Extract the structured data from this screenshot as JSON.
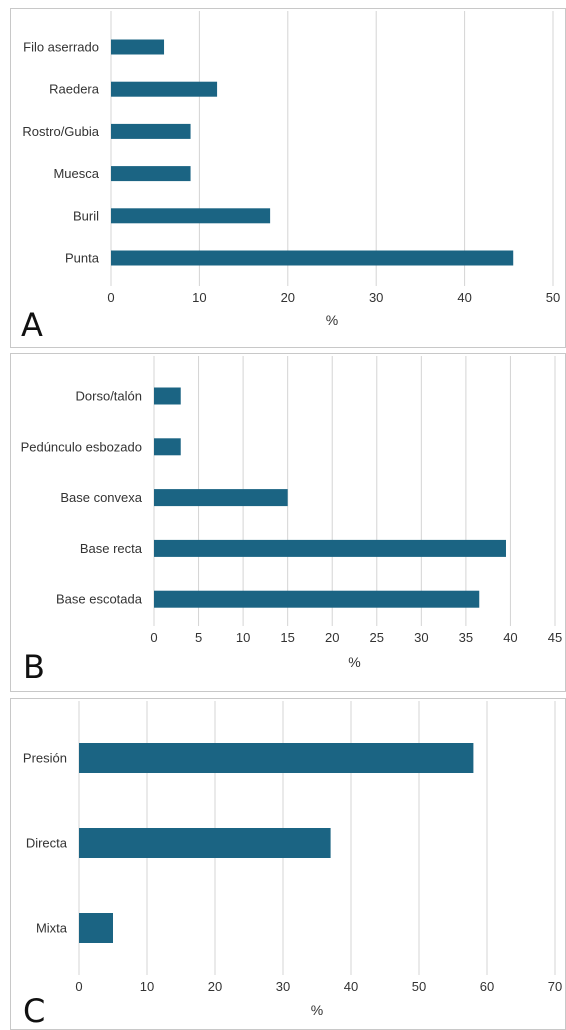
{
  "chart_data": [
    {
      "id": "A",
      "type": "bar",
      "orientation": "horizontal",
      "panel_label": "A",
      "categories": [
        "Filo aserrado",
        "Raedera",
        "Rostro/Gubia",
        "Muesca",
        "Buril",
        "Punta"
      ],
      "values": [
        6,
        12,
        9,
        9,
        18,
        45.5
      ],
      "xlabel": "%",
      "xlim": [
        0,
        50
      ],
      "xticks": [
        0,
        10,
        20,
        30,
        40,
        50
      ],
      "grid": "vertical",
      "colors": {
        "bar": "#1b6483"
      }
    },
    {
      "id": "B",
      "type": "bar",
      "orientation": "horizontal",
      "panel_label": "B",
      "categories": [
        "Dorso/talón",
        "Pedúnculo esbozado",
        "Base convexa",
        "Base recta",
        "Base escotada"
      ],
      "values": [
        3,
        3,
        15,
        39.5,
        36.5
      ],
      "xlabel": "%",
      "xlim": [
        0,
        45
      ],
      "xticks": [
        0,
        5,
        10,
        15,
        20,
        25,
        30,
        35,
        40,
        45
      ],
      "grid": "vertical",
      "colors": {
        "bar": "#1b6483"
      }
    },
    {
      "id": "C",
      "type": "bar",
      "orientation": "horizontal",
      "panel_label": "C",
      "categories": [
        "Presión",
        "Directa",
        "Mixta"
      ],
      "values": [
        58,
        37,
        5
      ],
      "xlabel": "%",
      "xlim": [
        0,
        70
      ],
      "xticks": [
        0,
        10,
        20,
        30,
        40,
        50,
        60,
        70
      ],
      "grid": "vertical",
      "colors": {
        "bar": "#1b6483"
      }
    }
  ]
}
